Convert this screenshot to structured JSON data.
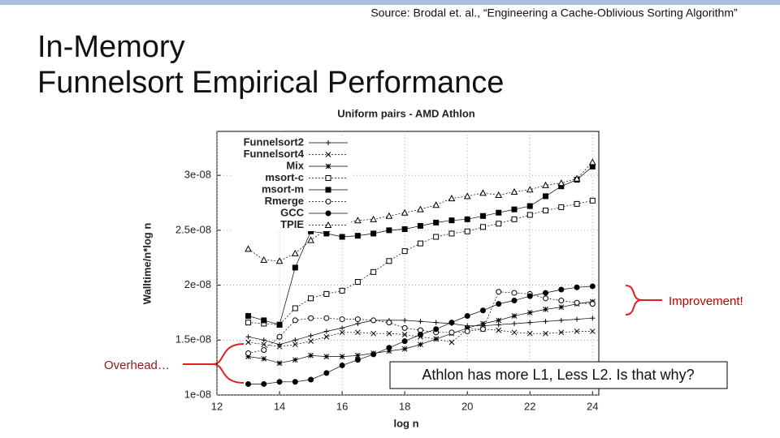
{
  "slide": {
    "source": "Source: Brodal et. al., “Engineering a Cache-Oblivious Sorting Algorithm”",
    "title_lines": [
      "In-Memory",
      "Funnelsort Empirical Performance"
    ],
    "improvement": "Improvement!",
    "overhead": "Overhead…",
    "callout": "Athlon has more L1, Less L2. Is that why?"
  },
  "chart_data": {
    "type": "line",
    "title": "Uniform pairs - AMD Athlon",
    "x_label": "log n",
    "y_label": "Walltime/n*log n",
    "xlim": [
      12,
      24.2
    ],
    "ylim": [
      1e-08,
      3.4e-08
    ],
    "xticks": [
      12,
      14,
      16,
      18,
      20,
      22,
      24
    ],
    "yticks": [
      {
        "value": 1e-08,
        "label": "1e-08"
      },
      {
        "value": 1.5e-08,
        "label": "1.5e-08"
      },
      {
        "value": 2e-08,
        "label": "2e-08"
      },
      {
        "value": 2.5e-08,
        "label": "2.5e-08"
      },
      {
        "value": 3e-08,
        "label": "3e-08"
      }
    ],
    "grid": true,
    "legend": "top-left",
    "x": [
      13,
      13.5,
      14,
      14.5,
      15,
      15.5,
      16,
      16.5,
      17,
      17.5,
      18,
      18.5,
      19,
      19.5,
      20,
      20.5,
      21,
      21.5,
      22,
      22.5,
      23,
      23.5,
      24
    ],
    "series": [
      {
        "name": "Funnelsort2",
        "color": "#000000",
        "marker": "plus",
        "values": [
          1.53e-08,
          1.5e-08,
          1.46e-08,
          1.5e-08,
          1.54e-08,
          1.58e-08,
          1.61e-08,
          1.65e-08,
          1.68e-08,
          1.68e-08,
          1.68e-08,
          1.67e-08,
          1.66e-08,
          1.65e-08,
          1.63e-08,
          1.63e-08,
          1.64e-08,
          1.65e-08,
          1.66e-08,
          1.67e-08,
          1.68e-08,
          1.69e-08,
          1.7e-08
        ]
      },
      {
        "name": "Funnelsort4",
        "color": "#000000",
        "marker": "cross",
        "values": [
          1.48e-08,
          1.46e-08,
          1.44e-08,
          1.46e-08,
          1.49e-08,
          1.53e-08,
          1.57e-08,
          1.57e-08,
          1.56e-08,
          1.56e-08,
          1.55e-08,
          1.53e-08,
          1.51e-08,
          1.48e-08,
          1.6e-08,
          1.6e-08,
          1.59e-08,
          1.57e-08,
          1.56e-08,
          1.56e-08,
          1.57e-08,
          1.58e-08,
          1.58e-08
        ]
      },
      {
        "name": "Mix",
        "color": "#000000",
        "marker": "star",
        "values": [
          1.35e-08,
          1.33e-08,
          1.29e-08,
          1.32e-08,
          1.36e-08,
          1.35e-08,
          1.35e-08,
          1.36e-08,
          1.38e-08,
          1.4e-08,
          1.42e-08,
          1.46e-08,
          1.51e-08,
          1.56e-08,
          1.61e-08,
          1.65e-08,
          1.68e-08,
          1.72e-08,
          1.75e-08,
          1.78e-08,
          1.8e-08,
          1.83e-08,
          1.85e-08
        ]
      },
      {
        "name": "msort-c",
        "color": "#000000",
        "marker": "square-open",
        "values": [
          1.66e-08,
          1.65e-08,
          1.64e-08,
          1.79e-08,
          1.88e-08,
          1.92e-08,
          1.95e-08,
          2.03e-08,
          2.12e-08,
          2.22e-08,
          2.31e-08,
          2.38e-08,
          2.44e-08,
          2.47e-08,
          2.49e-08,
          2.53e-08,
          2.56e-08,
          2.6e-08,
          2.64e-08,
          2.68e-08,
          2.71e-08,
          2.74e-08,
          2.77e-08
        ]
      },
      {
        "name": "msort-m",
        "color": "#000000",
        "marker": "square-fill",
        "values": [
          1.72e-08,
          1.68e-08,
          1.64e-08,
          2.16e-08,
          2.49e-08,
          2.47e-08,
          2.44e-08,
          2.45e-08,
          2.47e-08,
          2.5e-08,
          2.51e-08,
          2.54e-08,
          2.57e-08,
          2.59e-08,
          2.6e-08,
          2.63e-08,
          2.66e-08,
          2.69e-08,
          2.72e-08,
          2.81e-08,
          2.9e-08,
          2.96e-08,
          3.08e-08
        ]
      },
      {
        "name": "Rmerge",
        "color": "#000000",
        "marker": "circle-open",
        "values": [
          1.38e-08,
          1.41e-08,
          1.53e-08,
          1.68e-08,
          1.7e-08,
          1.7e-08,
          1.69e-08,
          1.69e-08,
          1.68e-08,
          1.66e-08,
          1.61e-08,
          1.59e-08,
          1.57e-08,
          1.57e-08,
          1.58e-08,
          1.6e-08,
          1.94e-08,
          1.93e-08,
          1.92e-08,
          1.88e-08,
          1.86e-08,
          1.84e-08,
          1.83e-08
        ]
      },
      {
        "name": "GCC",
        "color": "#000000",
        "marker": "circle-fill",
        "values": [
          1.1e-08,
          1.1e-08,
          1.12e-08,
          1.12e-08,
          1.14e-08,
          1.2e-08,
          1.27e-08,
          1.32e-08,
          1.37e-08,
          1.43e-08,
          1.49e-08,
          1.55e-08,
          1.6e-08,
          1.66e-08,
          1.72e-08,
          1.77e-08,
          1.83e-08,
          1.86e-08,
          1.9e-08,
          1.93e-08,
          1.96e-08,
          1.98e-08,
          1.99e-08
        ]
      },
      {
        "name": "TPIE",
        "color": "#000000",
        "marker": "triangle-open",
        "values": [
          2.33e-08,
          2.23e-08,
          2.22e-08,
          2.29e-08,
          2.41e-08,
          2.51e-08,
          2.56e-08,
          2.59e-08,
          2.6e-08,
          2.63e-08,
          2.66e-08,
          2.69e-08,
          2.73e-08,
          2.79e-08,
          2.81e-08,
          2.84e-08,
          2.82e-08,
          2.85e-08,
          2.87e-08,
          2.91e-08,
          2.93e-08,
          2.97e-08,
          3.12e-08
        ]
      }
    ]
  }
}
